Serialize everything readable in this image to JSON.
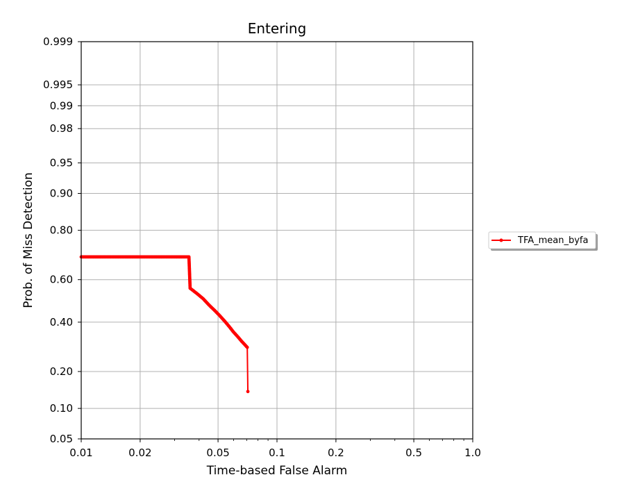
{
  "chart_data": {
    "type": "line",
    "title": "Entering",
    "xlabel": "Time-based False Alarm",
    "ylabel": "Prob. of Miss Detection",
    "x_scale": "log",
    "y_scale": "normal-deviate",
    "xlim": [
      0.01,
      1.0
    ],
    "ylim": [
      0.05,
      0.999
    ],
    "x_ticks": [
      {
        "value": 0.01,
        "label": "0.01"
      },
      {
        "value": 0.02,
        "label": "0.02"
      },
      {
        "value": 0.05,
        "label": "0.05"
      },
      {
        "value": 0.1,
        "label": "0.1"
      },
      {
        "value": 0.2,
        "label": "0.2"
      },
      {
        "value": 0.5,
        "label": "0.5"
      },
      {
        "value": 1.0,
        "label": "1.0"
      }
    ],
    "y_ticks": [
      {
        "value": 0.05,
        "label": "0.05"
      },
      {
        "value": 0.1,
        "label": "0.10"
      },
      {
        "value": 0.2,
        "label": "0.20"
      },
      {
        "value": 0.4,
        "label": "0.40"
      },
      {
        "value": 0.6,
        "label": "0.60"
      },
      {
        "value": 0.8,
        "label": "0.80"
      },
      {
        "value": 0.9,
        "label": "0.90"
      },
      {
        "value": 0.95,
        "label": "0.95"
      },
      {
        "value": 0.98,
        "label": "0.98"
      },
      {
        "value": 0.99,
        "label": "0.99"
      },
      {
        "value": 0.995,
        "label": "0.995"
      },
      {
        "value": 0.999,
        "label": "0.999"
      }
    ],
    "grid": true,
    "legend_position": "right",
    "series": [
      {
        "name": "TFA_mean_byfa",
        "color": "#ff0000",
        "marker": "dot",
        "points": [
          {
            "x": 0.01,
            "y": 0.7
          },
          {
            "x": 0.0115,
            "y": 0.7
          },
          {
            "x": 0.013,
            "y": 0.7
          },
          {
            "x": 0.015,
            "y": 0.7
          },
          {
            "x": 0.017,
            "y": 0.7
          },
          {
            "x": 0.02,
            "y": 0.7
          },
          {
            "x": 0.023,
            "y": 0.7
          },
          {
            "x": 0.026,
            "y": 0.7
          },
          {
            "x": 0.03,
            "y": 0.7
          },
          {
            "x": 0.033,
            "y": 0.7
          },
          {
            "x": 0.0355,
            "y": 0.7
          },
          {
            "x": 0.036,
            "y": 0.56
          },
          {
            "x": 0.039,
            "y": 0.535
          },
          {
            "x": 0.042,
            "y": 0.51
          },
          {
            "x": 0.045,
            "y": 0.48
          },
          {
            "x": 0.048,
            "y": 0.455
          },
          {
            "x": 0.051,
            "y": 0.43
          },
          {
            "x": 0.054,
            "y": 0.405
          },
          {
            "x": 0.057,
            "y": 0.38
          },
          {
            "x": 0.06,
            "y": 0.355
          },
          {
            "x": 0.063,
            "y": 0.335
          },
          {
            "x": 0.066,
            "y": 0.315
          },
          {
            "x": 0.0705,
            "y": 0.29
          },
          {
            "x": 0.071,
            "y": 0.14
          }
        ]
      }
    ]
  }
}
